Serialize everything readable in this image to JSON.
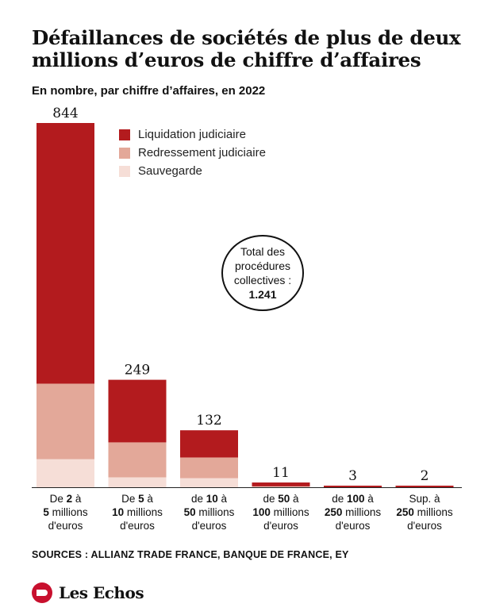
{
  "title": "Défaillances de sociétés de plus de deux millions d’euros de chiffre d’affaires",
  "subtitle": "En nombre, par chiffre d’affaires, en 2022",
  "legend": [
    {
      "label": "Liquidation judiciaire",
      "color": "#b31b1e"
    },
    {
      "label": "Redressement judiciaire",
      "color": "#e3a899"
    },
    {
      "label": "Sauvegarde",
      "color": "#f6ded7"
    }
  ],
  "total_box": {
    "line1": "Total des",
    "line2": "procédures",
    "line3": "collectives :",
    "value": "1.241"
  },
  "category_labels": [
    {
      "pre": "De ",
      "bold1": "2",
      "mid": " à",
      "bold2": "5",
      "post": " millions",
      "last": "d'euros"
    },
    {
      "pre": "De ",
      "bold1": "5",
      "mid": " à",
      "bold2": "10",
      "post": " millions",
      "last": "d'euros"
    },
    {
      "pre": "de ",
      "bold1": "10",
      "mid": " à",
      "bold2": "50",
      "post": " millions",
      "last": "d'euros"
    },
    {
      "pre": "de ",
      "bold1": "50",
      "mid": " à",
      "bold2": "100",
      "post": " millions",
      "last": "d'euros"
    },
    {
      "pre": "de ",
      "bold1": "100",
      "mid": " à",
      "bold2": "250",
      "post": " millions",
      "last": "d'euros"
    },
    {
      "pre": "Sup. à",
      "bold1": "",
      "mid": "",
      "bold2": "250",
      "post": " millions",
      "last": "d'euros"
    }
  ],
  "sources": "SOURCES : ALLIANZ TRADE FRANCE, BANQUE DE FRANCE, EY",
  "brand": "Les Echos",
  "chart_data": {
    "type": "bar",
    "stacked": true,
    "title": "Défaillances de sociétés de plus de deux millions d’euros de chiffre d’affaires",
    "subtitle": "En nombre, par chiffre d’affaires, en 2022",
    "categories": [
      "De 2 à 5 millions d'euros",
      "De 5 à 10 millions d'euros",
      "de 10 à 50 millions d'euros",
      "de 50 à 100 millions d'euros",
      "de 100 à 250 millions d'euros",
      "Sup. à 250 millions d'euros"
    ],
    "totals": [
      844,
      249,
      132,
      11,
      3,
      2
    ],
    "series": [
      {
        "name": "Liquidation judiciaire",
        "color": "#b31b1e",
        "values": [
          604,
          145,
          63,
          9,
          3,
          2
        ]
      },
      {
        "name": "Redressement judiciaire",
        "color": "#e3a899",
        "values": [
          175,
          81,
          48,
          1,
          0,
          0
        ]
      },
      {
        "name": "Sauvegarde",
        "color": "#f6ded7",
        "values": [
          65,
          23,
          21,
          1,
          0,
          0
        ]
      }
    ],
    "ylim": [
      0,
      844
    ],
    "legend_position": "top",
    "grid": false
  }
}
